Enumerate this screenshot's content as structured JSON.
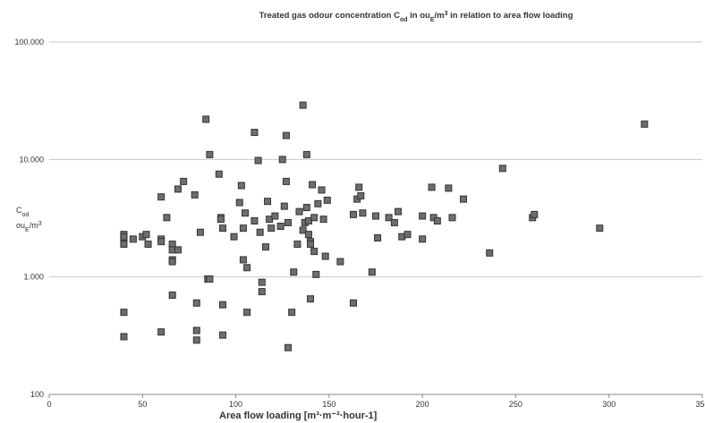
{
  "chart_data": {
    "type": "scatter",
    "title": [
      {
        "text": "Treated gas odour concentration  C"
      },
      {
        "text": "od",
        "style": "sub"
      },
      {
        "text": " in ou"
      },
      {
        "text": "E",
        "style": "sub"
      },
      {
        "text": "/m"
      },
      {
        "text": "3",
        "style": "sup"
      },
      {
        "text": " in relation to area flow loading"
      }
    ],
    "ylabel": [
      [
        {
          "text": "C"
        },
        {
          "text": "od",
          "style": "sub"
        }
      ],
      [
        {
          "text": "ou"
        },
        {
          "text": "E",
          "style": "sub"
        },
        {
          "text": "/m"
        },
        {
          "text": "3",
          "style": "sup"
        }
      ]
    ],
    "xlabel": "Area flow loading [m³·m⁻²·hour-1]",
    "log_y": true,
    "grid": true,
    "color": "#6e6e6e",
    "xlim": [
      0,
      350
    ],
    "xticks": [
      0,
      50,
      100,
      150,
      200,
      250,
      300,
      350
    ],
    "ylim": [
      100,
      100000
    ],
    "yticks": [
      {
        "value": 100,
        "label": "100"
      },
      {
        "value": 1000,
        "label": "1.000"
      },
      {
        "value": 10000,
        "label": "10.000"
      },
      {
        "value": 100000,
        "label": "100.000"
      }
    ],
    "x": [
      40,
      40,
      40,
      40,
      40,
      40,
      45,
      50,
      52,
      53,
      60,
      60,
      60,
      60,
      63,
      66,
      66,
      66,
      66,
      66,
      69,
      69,
      72,
      78,
      79,
      79,
      79,
      81,
      84,
      85,
      86,
      86,
      91,
      92,
      92,
      93,
      93,
      93,
      99,
      102,
      103,
      104,
      104,
      105,
      106,
      106,
      110,
      110,
      112,
      113,
      114,
      114,
      116,
      117,
      118,
      119,
      121,
      124,
      125,
      126,
      127,
      127,
      128,
      128,
      130,
      131,
      133,
      134,
      136,
      136,
      137,
      138,
      138,
      139,
      139,
      140,
      140,
      140,
      141,
      142,
      142,
      143,
      144,
      146,
      147,
      148,
      149,
      156,
      163,
      163,
      165,
      166,
      167,
      168,
      173,
      175,
      176,
      182,
      185,
      187,
      189,
      192,
      200,
      200,
      205,
      206,
      208,
      214,
      216,
      222,
      236,
      243,
      259,
      260,
      295,
      319
    ],
    "values": [
      2300,
      2100,
      1900,
      2200,
      500,
      310,
      2100,
      2200,
      2300,
      1900,
      4800,
      2100,
      2000,
      340,
      3200,
      1900,
      1700,
      1400,
      1350,
      700,
      5600,
      1700,
      6500,
      5000,
      600,
      350,
      290,
      2400,
      22000,
      960,
      11000,
      960,
      7500,
      3200,
      3100,
      2600,
      580,
      320,
      2200,
      4300,
      6000,
      2600,
      1400,
      3500,
      1200,
      500,
      3000,
      17000,
      9800,
      2400,
      900,
      750,
      1800,
      4400,
      3100,
      2600,
      3300,
      2700,
      10000,
      4000,
      6500,
      16000,
      2900,
      250,
      500,
      1100,
      1900,
      3600,
      29000,
      2500,
      2900,
      11000,
      3900,
      3000,
      2300,
      2000,
      1900,
      650,
      6100,
      3200,
      1650,
      1050,
      4200,
      5500,
      3100,
      1500,
      4500,
      1350,
      3400,
      600,
      4600,
      5800,
      4900,
      3500,
      1100,
      3300,
      2150,
      3200,
      2900,
      3600,
      2200,
      2300,
      3300,
      2100,
      5800,
      3200,
      3000,
      5700,
      3200,
      4600,
      1600,
      8400,
      3200,
      3400,
      2600,
      20000
    ]
  }
}
